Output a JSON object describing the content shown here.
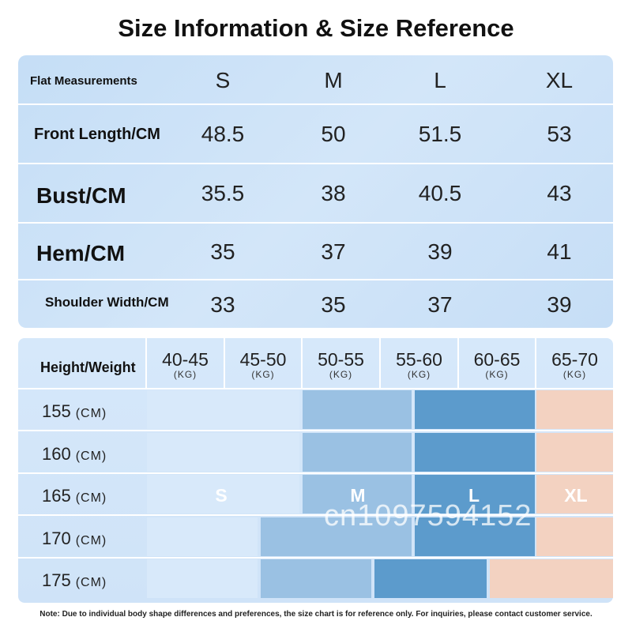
{
  "title": "Size Information & Size Reference",
  "measurements": {
    "header_label": "Flat Measurements",
    "sizes": [
      "S",
      "M",
      "L",
      "XL"
    ],
    "rows": [
      {
        "label": "Front Length/CM",
        "values": [
          "48.5",
          "50",
          "51.5",
          "53"
        ]
      },
      {
        "label": "Bust/CM",
        "values": [
          "35.5",
          "38",
          "40.5",
          "43"
        ]
      },
      {
        "label": "Hem/CM",
        "values": [
          "35",
          "37",
          "39",
          "41"
        ]
      },
      {
        "label": "Shoulder Width/CM",
        "values": [
          "33",
          "35",
          "37",
          "39"
        ]
      }
    ]
  },
  "reference": {
    "header_label": "Height/Weight",
    "weights": [
      {
        "range": "40-45",
        "unit": "(KG)"
      },
      {
        "range": "45-50",
        "unit": "(KG)"
      },
      {
        "range": "50-55",
        "unit": "(KG)"
      },
      {
        "range": "55-60",
        "unit": "(KG)"
      },
      {
        "range": "60-65",
        "unit": "(KG)"
      },
      {
        "range": "65-70",
        "unit": "(KG)"
      }
    ],
    "heights": [
      {
        "value": "155",
        "unit": "(CM)"
      },
      {
        "value": "160",
        "unit": "(CM)"
      },
      {
        "value": "165",
        "unit": "(CM)"
      },
      {
        "value": "170",
        "unit": "(CM)"
      },
      {
        "value": "175",
        "unit": "(CM)"
      }
    ],
    "size_labels": {
      "s": "S",
      "m": "M",
      "l": "L",
      "xl": "XL"
    },
    "colors": {
      "s": "#d8e9fa",
      "m": "#9ac1e3",
      "l": "#5c9bcc",
      "xl": "#f3d2c1"
    }
  },
  "watermark": "cn1097594152",
  "note": "Note: Due to individual body shape differences and preferences, the size chart is for reference only. For inquiries, please contact customer service."
}
